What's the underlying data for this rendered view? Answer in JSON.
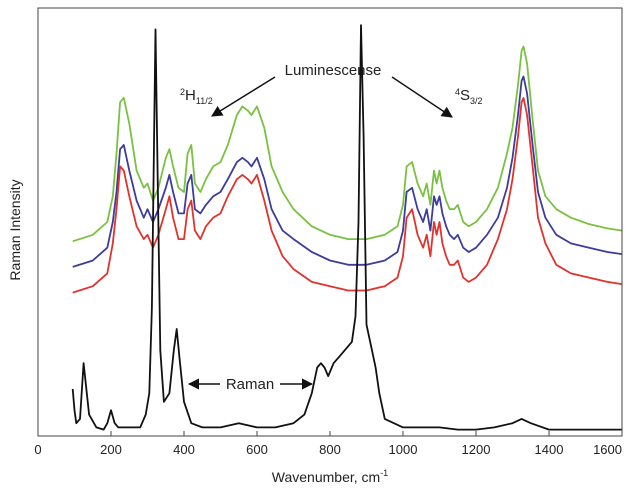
{
  "chart_data": {
    "type": "line",
    "title": "",
    "xlabel": "Wavenumber, cm",
    "xlabel_sup": "-1",
    "ylabel": "Raman Intensity",
    "xlim": [
      0,
      1600
    ],
    "ylim": [
      0,
      100
    ],
    "xticks": [
      0,
      200,
      400,
      600,
      800,
      1000,
      1200,
      1400,
      1600
    ],
    "yticks_shown": false,
    "grid": false,
    "legend": "none",
    "annotations": {
      "luminescence": "Luminescense",
      "h_base": "H",
      "h_sup": "2",
      "h_sub": "11/2",
      "s_base": "S",
      "s_sup": "4",
      "s_sub": "3/2",
      "raman": "Raman"
    },
    "series": [
      {
        "color": "#7ac142",
        "x": [
          95,
          150,
          190,
          205,
          215,
          225,
          235,
          250,
          270,
          290,
          300,
          315,
          330,
          350,
          360,
          370,
          385,
          400,
          410,
          420,
          430,
          445,
          460,
          480,
          500,
          520,
          545,
          560,
          575,
          585,
          600,
          620,
          640,
          670,
          700,
          750,
          800,
          850,
          900,
          950,
          985,
          1000,
          1010,
          1025,
          1040,
          1055,
          1065,
          1075,
          1085,
          1092,
          1100,
          1108,
          1118,
          1128,
          1140,
          1150,
          1165,
          1180,
          1200,
          1230,
          1260,
          1285,
          1300,
          1315,
          1325,
          1330,
          1340,
          1355,
          1370,
          1390,
          1420,
          1460,
          1510,
          1560,
          1600
        ],
        "y": [
          45.5,
          47,
          50,
          56,
          66,
          78,
          79,
          73,
          62,
          58,
          59,
          55,
          58,
          65,
          67,
          63,
          58,
          57,
          66,
          68,
          59,
          57,
          60,
          63,
          64,
          68,
          75,
          77,
          76,
          75,
          77,
          72,
          63,
          57,
          53,
          49,
          47,
          46,
          46,
          47,
          49,
          54,
          63,
          64,
          59,
          56,
          59,
          54,
          62,
          59,
          62,
          58,
          55,
          53,
          53,
          54,
          50,
          49,
          50,
          53,
          58,
          66,
          72,
          82,
          90,
          91,
          87,
          74,
          62,
          56,
          53,
          51,
          49.5,
          48.5,
          48
        ]
      },
      {
        "color": "#3c3c9c",
        "x": [
          95,
          150,
          190,
          205,
          215,
          225,
          235,
          250,
          270,
          290,
          300,
          315,
          330,
          350,
          360,
          370,
          385,
          400,
          410,
          420,
          430,
          445,
          460,
          480,
          500,
          520,
          545,
          560,
          575,
          585,
          600,
          620,
          640,
          670,
          700,
          750,
          800,
          850,
          900,
          950,
          985,
          1000,
          1010,
          1025,
          1040,
          1055,
          1065,
          1075,
          1085,
          1092,
          1100,
          1108,
          1118,
          1128,
          1140,
          1150,
          1165,
          1180,
          1200,
          1230,
          1260,
          1285,
          1300,
          1315,
          1325,
          1330,
          1340,
          1355,
          1370,
          1390,
          1420,
          1460,
          1510,
          1560,
          1600
        ],
        "y": [
          39.5,
          41,
          44,
          50,
          57,
          67,
          68,
          62,
          55,
          51,
          53,
          50,
          53,
          58,
          61,
          57,
          52,
          52,
          59,
          61,
          53,
          52,
          54,
          56,
          57,
          60,
          64,
          65,
          64,
          63,
          65,
          60,
          53,
          48,
          46,
          43,
          41,
          40,
          40,
          41,
          43,
          48,
          57,
          58,
          53,
          50,
          53,
          48,
          56,
          54,
          56,
          52,
          49,
          47,
          46,
          47,
          44,
          43,
          44,
          47,
          51,
          58,
          65,
          75,
          83,
          84,
          80,
          68,
          57,
          51,
          47,
          45,
          44,
          43,
          42.5
        ]
      },
      {
        "color": "#e1322d",
        "x": [
          95,
          150,
          190,
          205,
          215,
          225,
          235,
          250,
          270,
          290,
          300,
          315,
          330,
          350,
          360,
          370,
          385,
          400,
          410,
          420,
          430,
          445,
          460,
          480,
          500,
          520,
          545,
          560,
          575,
          585,
          600,
          620,
          640,
          670,
          700,
          750,
          800,
          850,
          900,
          950,
          985,
          1000,
          1010,
          1025,
          1040,
          1055,
          1065,
          1075,
          1085,
          1092,
          1100,
          1108,
          1118,
          1128,
          1140,
          1150,
          1165,
          1180,
          1200,
          1230,
          1260,
          1285,
          1300,
          1315,
          1325,
          1330,
          1340,
          1355,
          1370,
          1390,
          1420,
          1460,
          1510,
          1560,
          1600
        ],
        "y": [
          33.5,
          35,
          38,
          45,
          53,
          63,
          62,
          56,
          49,
          46,
          47,
          44,
          47,
          53,
          56,
          51,
          46,
          46,
          53,
          55,
          48,
          46,
          49,
          51,
          52,
          56,
          60,
          61,
          60,
          59,
          61,
          55,
          48,
          42,
          39,
          36,
          35,
          34,
          34,
          35,
          37,
          42,
          51,
          53,
          47,
          44,
          47,
          42,
          50,
          47,
          50,
          45,
          42,
          40,
          40,
          41,
          37,
          36,
          37,
          40,
          46,
          53,
          60,
          70,
          78,
          79,
          75,
          63,
          51,
          45,
          40,
          38,
          37,
          36,
          35.5
        ]
      },
      {
        "color": "#111111",
        "x": [
          95,
          100,
          105,
          115,
          125,
          140,
          160,
          180,
          190,
          200,
          210,
          220,
          240,
          260,
          280,
          295,
          305,
          312,
          318,
          322,
          328,
          335,
          345,
          360,
          372,
          380,
          388,
          400,
          420,
          450,
          500,
          550,
          600,
          650,
          700,
          730,
          750,
          765,
          775,
          785,
          795,
          810,
          830,
          850,
          860,
          870,
          878,
          885,
          892,
          900,
          915,
          925,
          935,
          950,
          1000,
          1050,
          1100,
          1150,
          1200,
          1250,
          1300,
          1325,
          1350,
          1400,
          1450,
          1500,
          1550,
          1600
        ],
        "y": [
          11,
          6,
          3,
          4,
          17,
          5,
          2,
          1.5,
          3,
          6,
          3,
          2,
          2,
          2,
          2,
          5,
          10,
          30,
          70,
          95,
          60,
          20,
          8,
          10,
          20,
          25,
          18,
          8,
          3,
          2,
          2,
          3,
          2,
          2,
          3,
          5,
          10,
          16,
          17,
          16,
          14,
          17,
          19,
          21,
          22,
          28,
          50,
          96,
          70,
          26,
          20,
          16,
          10,
          4,
          2,
          2,
          2,
          1.5,
          1.5,
          2,
          3,
          4,
          3,
          1.5,
          1.5,
          1.5,
          1.5,
          1.5
        ]
      }
    ]
  }
}
